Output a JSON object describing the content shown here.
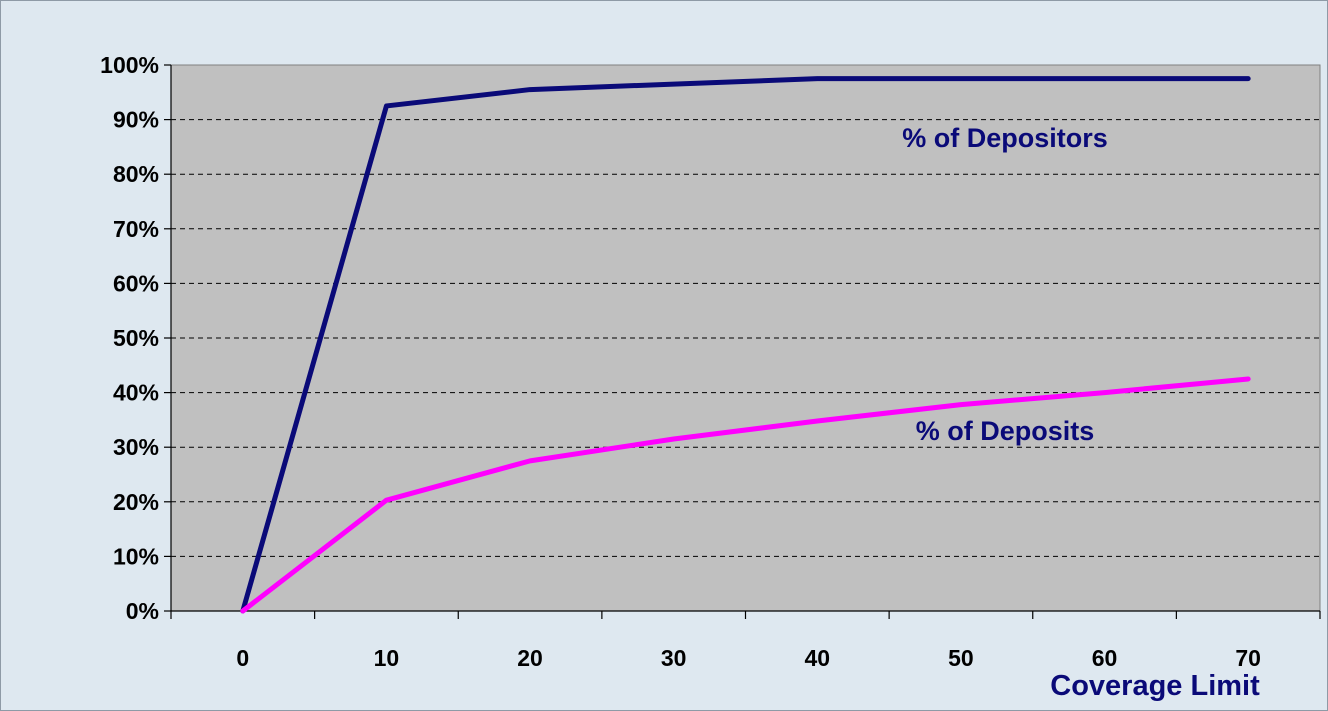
{
  "chart_data": {
    "type": "line",
    "title": "",
    "xlabel": "Coverage Limit",
    "ylabel": "",
    "x": [
      0,
      10,
      20,
      30,
      40,
      50,
      60,
      70
    ],
    "x_ticks": [
      "0",
      "10",
      "20",
      "30",
      "40",
      "50",
      "60",
      "70"
    ],
    "y_ticks": [
      "0%",
      "10%",
      "20%",
      "30%",
      "40%",
      "50%",
      "60%",
      "70%",
      "80%",
      "90%",
      "100%"
    ],
    "xlim": [
      -5,
      75
    ],
    "ylim": [
      0,
      100
    ],
    "grid": "horizontal dashed",
    "legend": "inline labels",
    "series": [
      {
        "name": "% of Depositors",
        "color": "#0a0a78",
        "values": [
          0,
          92.5,
          95.5,
          96.5,
          97.5,
          97.5,
          97.5,
          97.5
        ]
      },
      {
        "name": "% of Deposits",
        "color": "#ff00ff",
        "values": [
          0,
          20.3,
          27.5,
          31.5,
          34.8,
          37.8,
          40.0,
          42.5
        ]
      }
    ]
  },
  "colors": {
    "background": "#dee8f0",
    "plot_area": "#c0c0c0",
    "label_text": "#0a0a78"
  }
}
